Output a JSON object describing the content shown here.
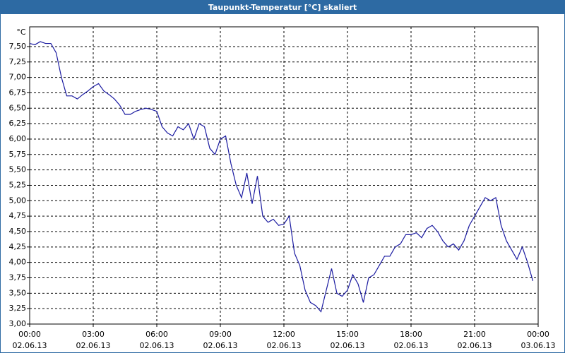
{
  "chart_data": {
    "type": "line",
    "title": "Taupunkt-Temperatur [°C] skaliert",
    "y_unit": "°C",
    "x": [
      "02.06.13 00:00",
      "02.06.13 00:15",
      "02.06.13 00:30",
      "02.06.13 00:45",
      "02.06.13 01:00",
      "02.06.13 01:15",
      "02.06.13 01:30",
      "02.06.13 01:45",
      "02.06.13 02:00",
      "02.06.13 02:15",
      "02.06.13 02:30",
      "02.06.13 02:45",
      "02.06.13 03:00",
      "02.06.13 03:15",
      "02.06.13 03:30",
      "02.06.13 03:45",
      "02.06.13 04:00",
      "02.06.13 04:15",
      "02.06.13 04:30",
      "02.06.13 04:45",
      "02.06.13 05:00",
      "02.06.13 05:15",
      "02.06.13 05:30",
      "02.06.13 05:45",
      "02.06.13 06:00",
      "02.06.13 06:15",
      "02.06.13 06:30",
      "02.06.13 06:45",
      "02.06.13 07:00",
      "02.06.13 07:15",
      "02.06.13 07:30",
      "02.06.13 07:45",
      "02.06.13 08:00",
      "02.06.13 08:15",
      "02.06.13 08:30",
      "02.06.13 08:45",
      "02.06.13 09:00",
      "02.06.13 09:15",
      "02.06.13 09:30",
      "02.06.13 09:45",
      "02.06.13 10:00",
      "02.06.13 10:15",
      "02.06.13 10:30",
      "02.06.13 10:45",
      "02.06.13 11:00",
      "02.06.13 11:15",
      "02.06.13 11:30",
      "02.06.13 11:45",
      "02.06.13 12:00",
      "02.06.13 12:15",
      "02.06.13 12:30",
      "02.06.13 12:45",
      "02.06.13 13:00",
      "02.06.13 13:15",
      "02.06.13 13:30",
      "02.06.13 13:45",
      "02.06.13 14:00",
      "02.06.13 14:15",
      "02.06.13 14:30",
      "02.06.13 14:45",
      "02.06.13 15:00",
      "02.06.13 15:15",
      "02.06.13 15:30",
      "02.06.13 15:45",
      "02.06.13 16:00",
      "02.06.13 16:15",
      "02.06.13 16:30",
      "02.06.13 16:45",
      "02.06.13 17:00",
      "02.06.13 17:15",
      "02.06.13 17:30",
      "02.06.13 17:45",
      "02.06.13 18:00",
      "02.06.13 18:15",
      "02.06.13 18:30",
      "02.06.13 18:45",
      "02.06.13 19:00",
      "02.06.13 19:15",
      "02.06.13 19:30",
      "02.06.13 19:45",
      "02.06.13 20:00",
      "02.06.13 20:15",
      "02.06.13 20:30",
      "02.06.13 20:45",
      "02.06.13 21:00",
      "02.06.13 21:15",
      "02.06.13 21:30",
      "02.06.13 21:45",
      "02.06.13 22:00",
      "02.06.13 22:15",
      "02.06.13 22:30",
      "02.06.13 22:45",
      "02.06.13 23:00",
      "02.06.13 23:15",
      "02.06.13 23:30",
      "02.06.13 23:45"
    ],
    "series": [
      {
        "color": "#1a1aa0",
        "values": [
          7.55,
          7.53,
          7.58,
          7.55,
          7.55,
          7.4,
          7.0,
          6.7,
          6.7,
          6.65,
          6.72,
          6.78,
          6.85,
          6.9,
          6.78,
          6.72,
          6.65,
          6.55,
          6.4,
          6.4,
          6.45,
          6.48,
          6.5,
          6.48,
          6.45,
          6.2,
          6.1,
          6.05,
          6.2,
          6.15,
          6.25,
          6.0,
          6.25,
          6.2,
          5.85,
          5.75,
          6.0,
          6.05,
          5.6,
          5.25,
          5.05,
          5.45,
          4.95,
          5.4,
          4.75,
          4.65,
          4.7,
          4.6,
          4.62,
          4.75,
          4.15,
          3.95,
          3.55,
          3.35,
          3.3,
          3.2,
          3.55,
          3.9,
          3.5,
          3.45,
          3.55,
          3.8,
          3.65,
          3.35,
          3.75,
          3.8,
          3.95,
          4.1,
          4.1,
          4.25,
          4.3,
          4.45,
          4.45,
          4.48,
          4.4,
          4.55,
          4.6,
          4.5,
          4.35,
          4.25,
          4.3,
          4.2,
          4.35,
          4.6,
          4.75,
          4.9,
          5.05,
          5.0,
          5.05,
          4.6,
          4.35,
          4.2,
          4.05,
          4.25,
          4.0,
          3.7
        ]
      }
    ],
    "xlim": [
      "02.06.13 00:00",
      "03.06.13 00:00"
    ],
    "xticks": [
      {
        "value": "02.06.13 00:00",
        "label": "00:00",
        "date": "02.06.13"
      },
      {
        "value": "02.06.13 03:00",
        "label": "03:00",
        "date": "02.06.13"
      },
      {
        "value": "02.06.13 06:00",
        "label": "06:00",
        "date": "02.06.13"
      },
      {
        "value": "02.06.13 09:00",
        "label": "09:00",
        "date": "02.06.13"
      },
      {
        "value": "02.06.13 12:00",
        "label": "12:00",
        "date": "02.06.13"
      },
      {
        "value": "02.06.13 15:00",
        "label": "15:00",
        "date": "02.06.13"
      },
      {
        "value": "02.06.13 18:00",
        "label": "18:00",
        "date": "02.06.13"
      },
      {
        "value": "02.06.13 21:00",
        "label": "21:00",
        "date": "02.06.13"
      },
      {
        "value": "03.06.13 00:00",
        "label": "00:00",
        "date": "03.06.13"
      }
    ],
    "ylim": [
      3.0,
      7.82
    ],
    "yticks": [
      {
        "value": 3.0,
        "label": "3,00"
      },
      {
        "value": 3.25,
        "label": "3,25"
      },
      {
        "value": 3.5,
        "label": "3,50"
      },
      {
        "value": 3.75,
        "label": "3,75"
      },
      {
        "value": 4.0,
        "label": "4,00"
      },
      {
        "value": 4.25,
        "label": "4,25"
      },
      {
        "value": 4.5,
        "label": "4,50"
      },
      {
        "value": 4.75,
        "label": "4,75"
      },
      {
        "value": 5.0,
        "label": "5,00"
      },
      {
        "value": 5.25,
        "label": "5,25"
      },
      {
        "value": 5.5,
        "label": "5,50"
      },
      {
        "value": 5.75,
        "label": "5,75"
      },
      {
        "value": 6.0,
        "label": "6,00"
      },
      {
        "value": 6.25,
        "label": "6,25"
      },
      {
        "value": 6.5,
        "label": "6,50"
      },
      {
        "value": 6.75,
        "label": "6,75"
      },
      {
        "value": 7.0,
        "label": "7,00"
      },
      {
        "value": 7.25,
        "label": "7,25"
      },
      {
        "value": 7.5,
        "label": "7,50"
      }
    ],
    "grid": true
  }
}
